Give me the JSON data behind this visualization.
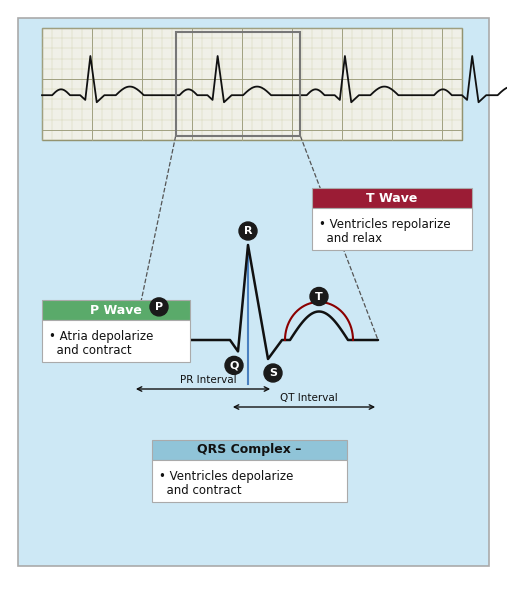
{
  "bg_color": "#cde8f5",
  "fig_bg": "#ffffff",
  "ecg_strip_bg": "#f0f0e8",
  "grid_minor": "#c8c8a0",
  "grid_major": "#a0a080",
  "p_wave_label": "P Wave",
  "p_wave_desc1": "• Atria depolarize",
  "p_wave_desc2": "  and contract",
  "p_wave_hdr_color": "#5aaa6a",
  "t_wave_label": "T Wave",
  "t_wave_desc1": "• Ventricles repolarize",
  "t_wave_desc2": "  and relax",
  "t_wave_hdr_color": "#9b1c35",
  "qrs_label": "QRS Complex –",
  "qrs_desc1": "• Ventricles depolarize",
  "qrs_desc2": "  and contract",
  "qrs_hdr_color": "#90c4d8",
  "pr_interval_label": "PR Interval",
  "qt_interval_label": "QT Interval",
  "circle_bg": "#1a1a1a",
  "circle_fg": "#ffffff",
  "ecg_color": "#111111",
  "blue_line_color": "#4a80c0",
  "dashed_line_color": "#555555",
  "green_arc_color": "#2d8b50",
  "red_arc_color": "#8b0000",
  "arrow_color": "#111111",
  "border_color": "#aaaaaa"
}
